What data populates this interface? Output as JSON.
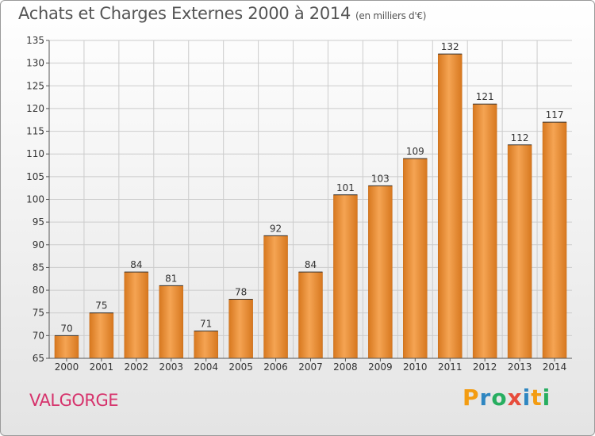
{
  "header": {
    "title": "Achats et Charges Externes 2000 à 2014",
    "unit": "(en milliers d'€)"
  },
  "footer": {
    "commune": "VALGORGE",
    "logo": [
      "P",
      "r",
      "o",
      "x",
      "i",
      "t",
      "i"
    ]
  },
  "colors": {
    "bar_light": "#f5a453",
    "bar_dark": "#d7781f",
    "commune": "#d6336c",
    "grid": "#cccccc"
  },
  "chart_data": {
    "type": "bar",
    "title": "Achats et Charges Externes 2000 à 2014",
    "subtitle": "(en milliers d'€)",
    "categories": [
      "2000",
      "2001",
      "2002",
      "2003",
      "2004",
      "2005",
      "2006",
      "2007",
      "2008",
      "2009",
      "2010",
      "2011",
      "2012",
      "2013",
      "2014"
    ],
    "values": [
      70,
      75,
      84,
      81,
      71,
      78,
      92,
      84,
      101,
      103,
      109,
      132,
      121,
      112,
      117
    ],
    "ylim": [
      65,
      135
    ],
    "yticks": [
      65,
      70,
      75,
      80,
      85,
      90,
      95,
      100,
      105,
      110,
      115,
      120,
      125,
      130,
      135
    ],
    "grid": true,
    "xlabel": "",
    "ylabel": ""
  }
}
